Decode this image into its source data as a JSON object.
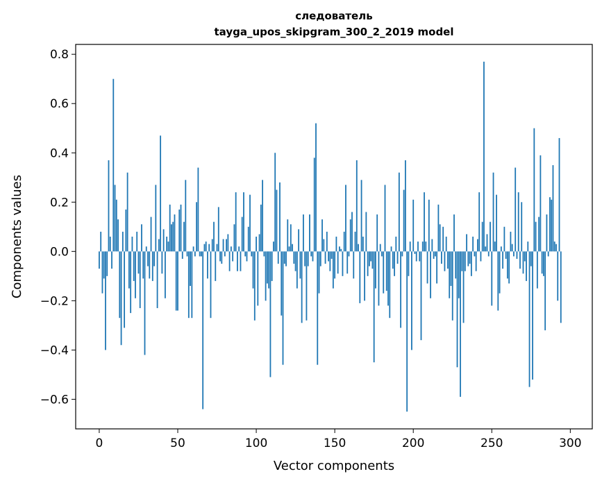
{
  "chart_data": {
    "type": "bar",
    "title": "следователь",
    "subtitle": "tayga_upos_skipgram_300_2_2019 model",
    "xlabel": "Vector components",
    "ylabel": "Components values",
    "xlim": [
      -15,
      314
    ],
    "ylim": [
      -0.72,
      0.84
    ],
    "xticks": [
      0,
      50,
      100,
      150,
      200,
      250,
      300
    ],
    "xtick_labels": [
      "0",
      "50",
      "100",
      "150",
      "200",
      "250",
      "300"
    ],
    "yticks": [
      0.8,
      0.6,
      0.4,
      0.2,
      0.0,
      -0.2,
      -0.4,
      -0.6
    ],
    "ytick_labels": [
      "0.8",
      "0.6",
      "0.4",
      "0.2",
      "0.0",
      "−0.2",
      "−0.4",
      "−0.6"
    ],
    "bar_color": "#1f77b4",
    "x": "0..299",
    "values": [
      -0.07,
      0.08,
      -0.17,
      -0.11,
      -0.4,
      -0.1,
      0.37,
      0.06,
      -0.07,
      0.7,
      0.27,
      0.21,
      0.13,
      -0.27,
      -0.38,
      0.08,
      -0.31,
      0.17,
      0.32,
      -0.15,
      -0.25,
      0.06,
      -0.12,
      -0.19,
      0.08,
      -0.09,
      -0.23,
      0.11,
      -0.11,
      -0.42,
      0.02,
      -0.06,
      -0.11,
      0.14,
      -0.12,
      -0.06,
      0.27,
      -0.23,
      0.05,
      0.47,
      -0.09,
      0.09,
      -0.19,
      0.06,
      0.04,
      0.19,
      0.11,
      0.12,
      0.15,
      -0.24,
      -0.24,
      0.17,
      0.19,
      -0.03,
      0.12,
      0.29,
      -0.02,
      -0.27,
      -0.14,
      -0.27,
      0.02,
      -0.02,
      0.2,
      0.34,
      -0.02,
      -0.02,
      -0.64,
      0.03,
      0.04,
      -0.11,
      0.03,
      -0.27,
      0.05,
      0.12,
      -0.12,
      0.03,
      0.18,
      -0.04,
      -0.05,
      0.05,
      -0.02,
      0.05,
      0.07,
      -0.08,
      0.02,
      -0.04,
      0.11,
      0.24,
      -0.08,
      0.02,
      -0.08,
      0.14,
      0.24,
      -0.02,
      -0.04,
      0.1,
      0.23,
      -0.02,
      -0.15,
      -0.28,
      0.06,
      -0.22,
      0.07,
      0.19,
      0.29,
      -0.02,
      -0.2,
      -0.13,
      -0.15,
      -0.51,
      -0.12,
      0.04,
      0.4,
      0.25,
      -0.05,
      0.28,
      -0.26,
      -0.46,
      -0.05,
      -0.06,
      0.13,
      0.02,
      0.11,
      0.03,
      -0.05,
      -0.08,
      -0.15,
      0.09,
      -0.11,
      -0.29,
      0.15,
      -0.06,
      -0.28,
      -0.06,
      0.15,
      -0.02,
      -0.04,
      0.38,
      0.52,
      -0.46,
      -0.17,
      -0.06,
      0.13,
      0.05,
      -0.05,
      0.08,
      -0.04,
      -0.08,
      -0.03,
      -0.15,
      -0.11,
      0.06,
      -0.09,
      0.02,
      0.01,
      -0.1,
      0.08,
      0.27,
      -0.09,
      -0.02,
      0.13,
      0.16,
      -0.11,
      0.08,
      0.37,
      0.03,
      -0.21,
      0.29,
      0.06,
      -0.2,
      0.16,
      -0.1,
      -0.06,
      -0.04,
      -0.07,
      -0.45,
      -0.15,
      0.15,
      -0.22,
      0.03,
      -0.02,
      -0.17,
      0.27,
      -0.16,
      -0.22,
      -0.27,
      0.02,
      -0.07,
      -0.1,
      0.06,
      -0.05,
      0.32,
      -0.31,
      -0.02,
      0.25,
      0.37,
      -0.65,
      -0.1,
      0.04,
      -0.4,
      0.21,
      -0.01,
      -0.04,
      0.04,
      -0.04,
      -0.36,
      0.04,
      0.24,
      0.04,
      -0.13,
      0.21,
      -0.19,
      0.05,
      -0.03,
      -0.02,
      -0.13,
      0.19,
      0.11,
      -0.05,
      0.1,
      -0.08,
      0.06,
      -0.07,
      -0.19,
      -0.14,
      -0.28,
      0.15,
      -0.11,
      -0.47,
      -0.19,
      -0.59,
      -0.08,
      -0.29,
      -0.08,
      0.07,
      -0.06,
      -0.05,
      -0.1,
      0.06,
      -0.02,
      -0.08,
      0.05,
      0.24,
      -0.04,
      0.12,
      0.77,
      0.02,
      0.07,
      -0.02,
      0.12,
      -0.22,
      0.32,
      0.04,
      0.23,
      -0.24,
      -0.17,
      0.02,
      -0.07,
      0.1,
      -0.03,
      -0.11,
      -0.13,
      0.08,
      0.03,
      -0.02,
      0.34,
      -0.03,
      0.24,
      -0.07,
      0.2,
      -0.09,
      -0.04,
      -0.12,
      0.04,
      -0.55,
      -0.06,
      -0.52,
      0.5,
      0.12,
      -0.15,
      0.14,
      0.39,
      -0.09,
      -0.1,
      -0.32,
      0.15,
      -0.02,
      0.22,
      0.21,
      0.35,
      0.04,
      0.03,
      -0.2,
      0.46,
      -0.29,
      0.0,
      0.0,
      0.0,
      0.0,
      0.0
    ]
  }
}
